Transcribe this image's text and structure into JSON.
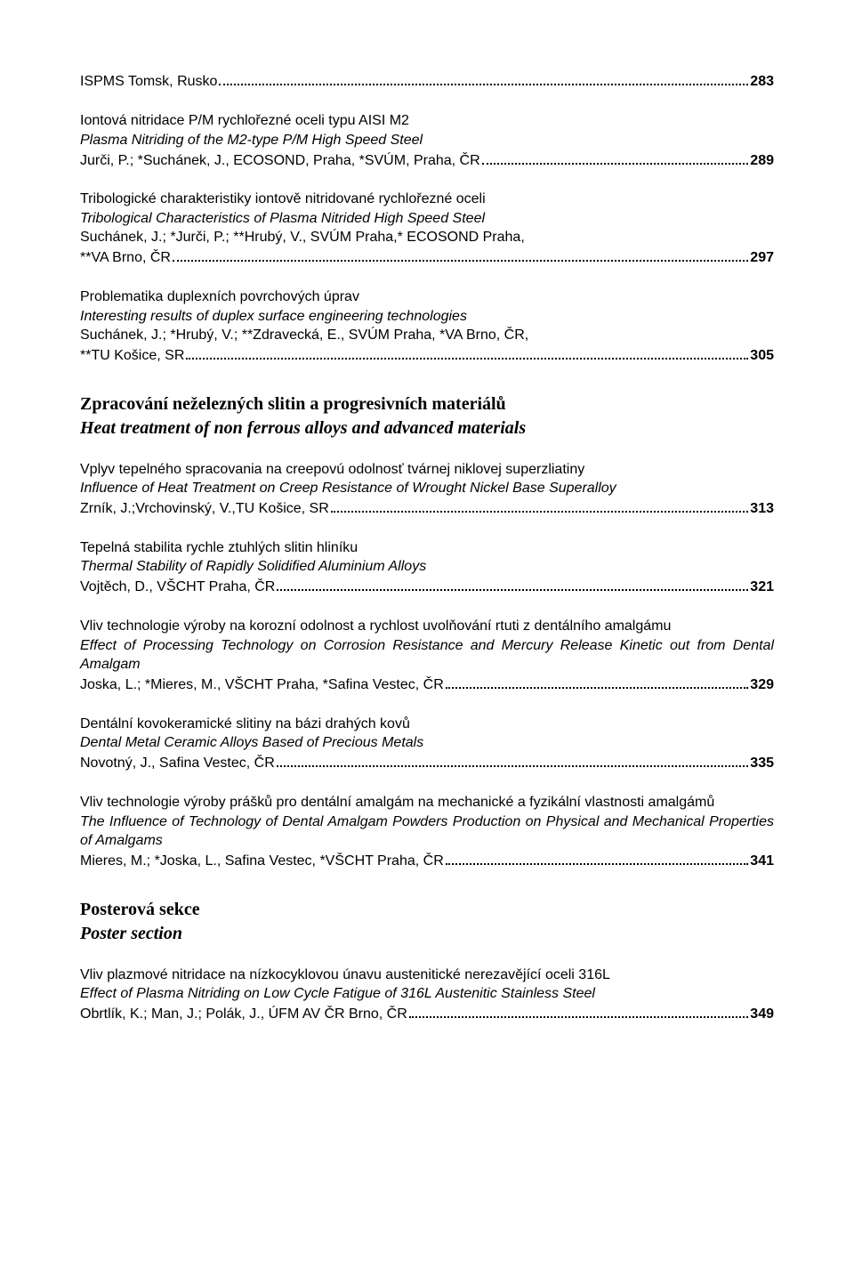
{
  "entries": [
    {
      "type": "entry",
      "lines": [
        {
          "kind": "dotfill",
          "lead": "ISPMS Tomsk, Rusko",
          "page": "283",
          "bold_page": true
        }
      ]
    },
    {
      "type": "entry",
      "lines": [
        {
          "kind": "plain",
          "text": "Iontová nitridace P/M rychlořezné oceli typu AISI M2"
        },
        {
          "kind": "plain",
          "text": "Plasma Nitriding of the M2-type P/M High Speed Steel",
          "italic": true
        },
        {
          "kind": "dotfill",
          "lead": "Jurči, P.; *Suchánek, J., ECOSOND, Praha, *SVÚM, Praha, ČR",
          "page": "289",
          "bold_page": true
        }
      ]
    },
    {
      "type": "entry",
      "lines": [
        {
          "kind": "plain",
          "text": "Tribologické charakteristiky iontově nitridované rychlořezné oceli"
        },
        {
          "kind": "plain",
          "text": "Tribological Characteristics of Plasma Nitrided High Speed Steel",
          "italic": true
        },
        {
          "kind": "plain",
          "text": "Suchánek, J.; *Jurči, P.; **Hrubý, V., SVÚM Praha,* ECOSOND Praha,"
        },
        {
          "kind": "dotfill",
          "lead": "**VA Brno, ČR",
          "page": "297",
          "bold_page": true
        }
      ]
    },
    {
      "type": "entry",
      "lines": [
        {
          "kind": "plain",
          "text": "Problematika duplexních povrchových úprav"
        },
        {
          "kind": "plain",
          "text": "Interesting results of duplex surface engineering technologies",
          "italic": true
        },
        {
          "kind": "plain",
          "text": "Suchánek, J.; *Hrubý, V.; **Zdravecká, E., SVÚM Praha, *VA Brno, ČR,"
        },
        {
          "kind": "dotfill",
          "lead": "**TU Košice, SR",
          "page": "305",
          "bold_page": true
        }
      ]
    },
    {
      "type": "section",
      "heading": "Zpracování neželezných slitin a progresivních materiálů",
      "sub": "Heat treatment of non ferrous alloys and advanced materials"
    },
    {
      "type": "entry",
      "lines": [
        {
          "kind": "plain",
          "text": "Vplyv tepelného spracovania na creepovú odolnosť tvárnej niklovej superzliatiny"
        },
        {
          "kind": "plain",
          "text": "Influence of Heat Treatment on Creep Resistance of Wrought Nickel Base Superalloy",
          "italic": true
        },
        {
          "kind": "dotfill",
          "lead": "Zrník, J.;Vrchovinský, V.,TU Košice, SR",
          "page": "313",
          "bold_page": true
        }
      ]
    },
    {
      "type": "entry",
      "lines": [
        {
          "kind": "plain",
          "text": "Tepelná stabilita rychle ztuhlých slitin hliníku"
        },
        {
          "kind": "plain",
          "text": "Thermal Stability of Rapidly Solidified Aluminium Alloys",
          "italic": true
        },
        {
          "kind": "dotfill",
          "lead": "Vojtěch, D., VŠCHT Praha, ČR",
          "page": "321",
          "bold_page": true
        }
      ]
    },
    {
      "type": "entry",
      "justify": true,
      "lines": [
        {
          "kind": "plain",
          "text": "Vliv technologie výroby na korozní odolnost a rychlost uvolňování rtuti z dentálního amalgámu"
        },
        {
          "kind": "plain",
          "text": "Effect of Processing Technology on Corrosion Resistance and Mercury Release Kinetic out from Dental Amalgam",
          "italic": true
        },
        {
          "kind": "dotfill",
          "lead": "Joska, L.; *Mieres, M., VŠCHT Praha, *Safina Vestec, ČR",
          "page": "329",
          "bold_page": true
        }
      ]
    },
    {
      "type": "entry",
      "lines": [
        {
          "kind": "plain",
          "text": "Dentální kovokeramické slitiny na bázi drahých kovů"
        },
        {
          "kind": "plain",
          "text": "Dental Metal Ceramic Alloys  Based of Precious Metals",
          "italic": true
        },
        {
          "kind": "dotfill",
          "lead": "Novotný, J., Safina Vestec, ČR",
          "page": "335",
          "bold_page": true
        }
      ]
    },
    {
      "type": "entry",
      "justify": true,
      "lines": [
        {
          "kind": "plain",
          "text": "Vliv technologie výroby prášků pro dentální amalgám na mechanické a fyzikální vlastnosti amalgámů"
        },
        {
          "kind": "plain",
          "text": "The Influence of Technology of Dental Amalgam Powders Production on Physical and Mechanical Properties of Amalgams",
          "italic": true
        },
        {
          "kind": "dotfill",
          "lead": "Mieres, M.; *Joska, L., Safina Vestec, *VŠCHT Praha, ČR",
          "page": "341",
          "bold_page": true
        }
      ]
    },
    {
      "type": "section",
      "heading": "Posterová sekce",
      "sub": "Poster section"
    },
    {
      "type": "entry",
      "lines": [
        {
          "kind": "plain",
          "text": "Vliv plazmové nitridace na nízkocyklovou únavu austenitické nerezavějící oceli 316L"
        },
        {
          "kind": "plain",
          "text": "Effect of Plasma Nitriding on Low Cycle Fatigue of 316L Austenitic Stainless Steel",
          "italic": true
        },
        {
          "kind": "dotfill",
          "lead": "Obrtlík, K.; Man, J.; Polák, J., ÚFM AV ČR Brno, ČR",
          "page": "349",
          "bold_page": true
        }
      ]
    }
  ]
}
